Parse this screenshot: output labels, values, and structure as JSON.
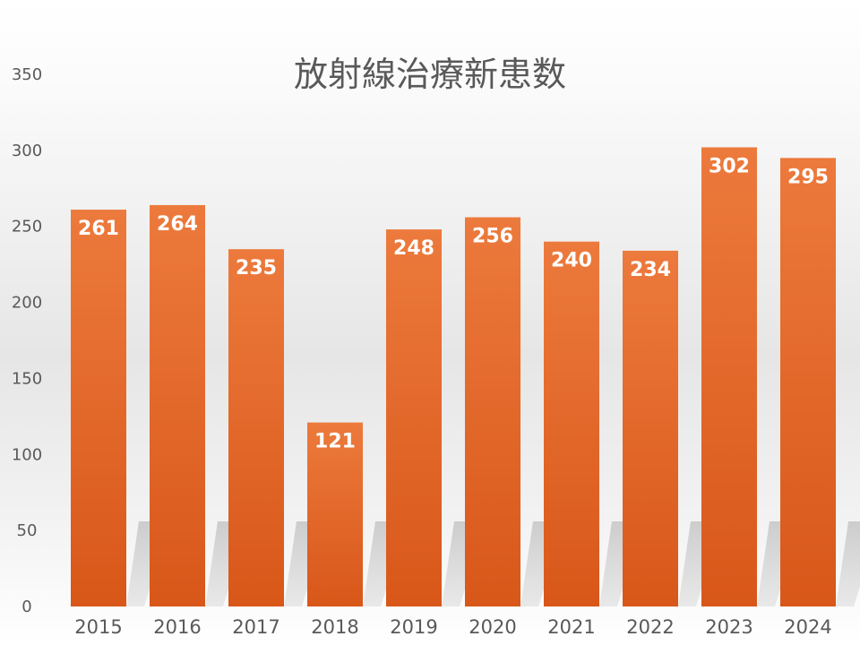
{
  "colors": {
    "bar_top": "#ec7a3c",
    "bar_bottom": "#d85719",
    "label": "#595959",
    "data_label": "#ffffff"
  },
  "chart_data": {
    "type": "bar",
    "title": "放射線治療新患数",
    "xlabel": "",
    "ylabel": "",
    "categories": [
      "2015",
      "2016",
      "2017",
      "2018",
      "2019",
      "2020",
      "2021",
      "2022",
      "2023",
      "2024"
    ],
    "values": [
      261,
      264,
      235,
      121,
      248,
      256,
      240,
      234,
      302,
      295
    ],
    "data_labels": [
      "261",
      "264",
      "235",
      "121",
      "248",
      "256",
      "240",
      "234",
      "302",
      "295"
    ],
    "ylim": [
      0,
      350
    ],
    "yticks": [
      "0",
      "50",
      "100",
      "150",
      "200",
      "250",
      "300",
      "350"
    ],
    "grid": false,
    "legend": "none"
  }
}
